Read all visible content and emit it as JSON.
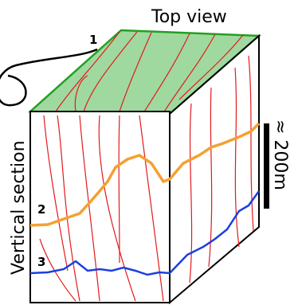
{
  "labels": {
    "top_view": "Top view",
    "vertical_section": "Vertical section",
    "scale": "≈ 200m",
    "markers": [
      "1",
      "2",
      "3"
    ]
  }
}
